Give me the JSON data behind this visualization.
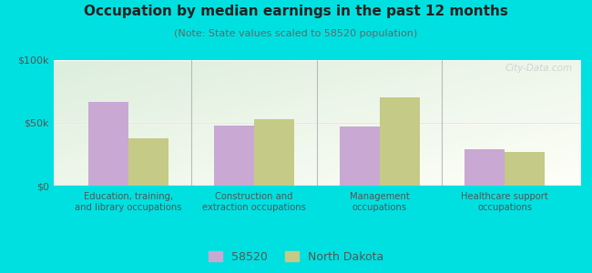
{
  "title": "Occupation by median earnings in the past 12 months",
  "subtitle": "(Note: State values scaled to 58520 population)",
  "categories": [
    "Education, training,\nand library occupations",
    "Construction and\nextraction occupations",
    "Management\noccupations",
    "Healthcare support\noccupations"
  ],
  "values_58520": [
    67000,
    48000,
    47000,
    29000
  ],
  "values_nd": [
    38000,
    53000,
    70000,
    27000
  ],
  "color_58520": "#c9a8d4",
  "color_nd": "#c5ca86",
  "ylim": [
    0,
    100000
  ],
  "yticks": [
    0,
    50000,
    100000
  ],
  "ytick_labels": [
    "$0",
    "$50k",
    "$100k"
  ],
  "outer_background": "#00e0e0",
  "chart_bg_top_left": "#ddeedd",
  "chart_bg_bottom_right": "#fffff8",
  "watermark": "City-Data.com",
  "legend_58520": "58520",
  "legend_nd": "North Dakota",
  "bar_width": 0.32,
  "title_fontsize": 11,
  "subtitle_fontsize": 8
}
